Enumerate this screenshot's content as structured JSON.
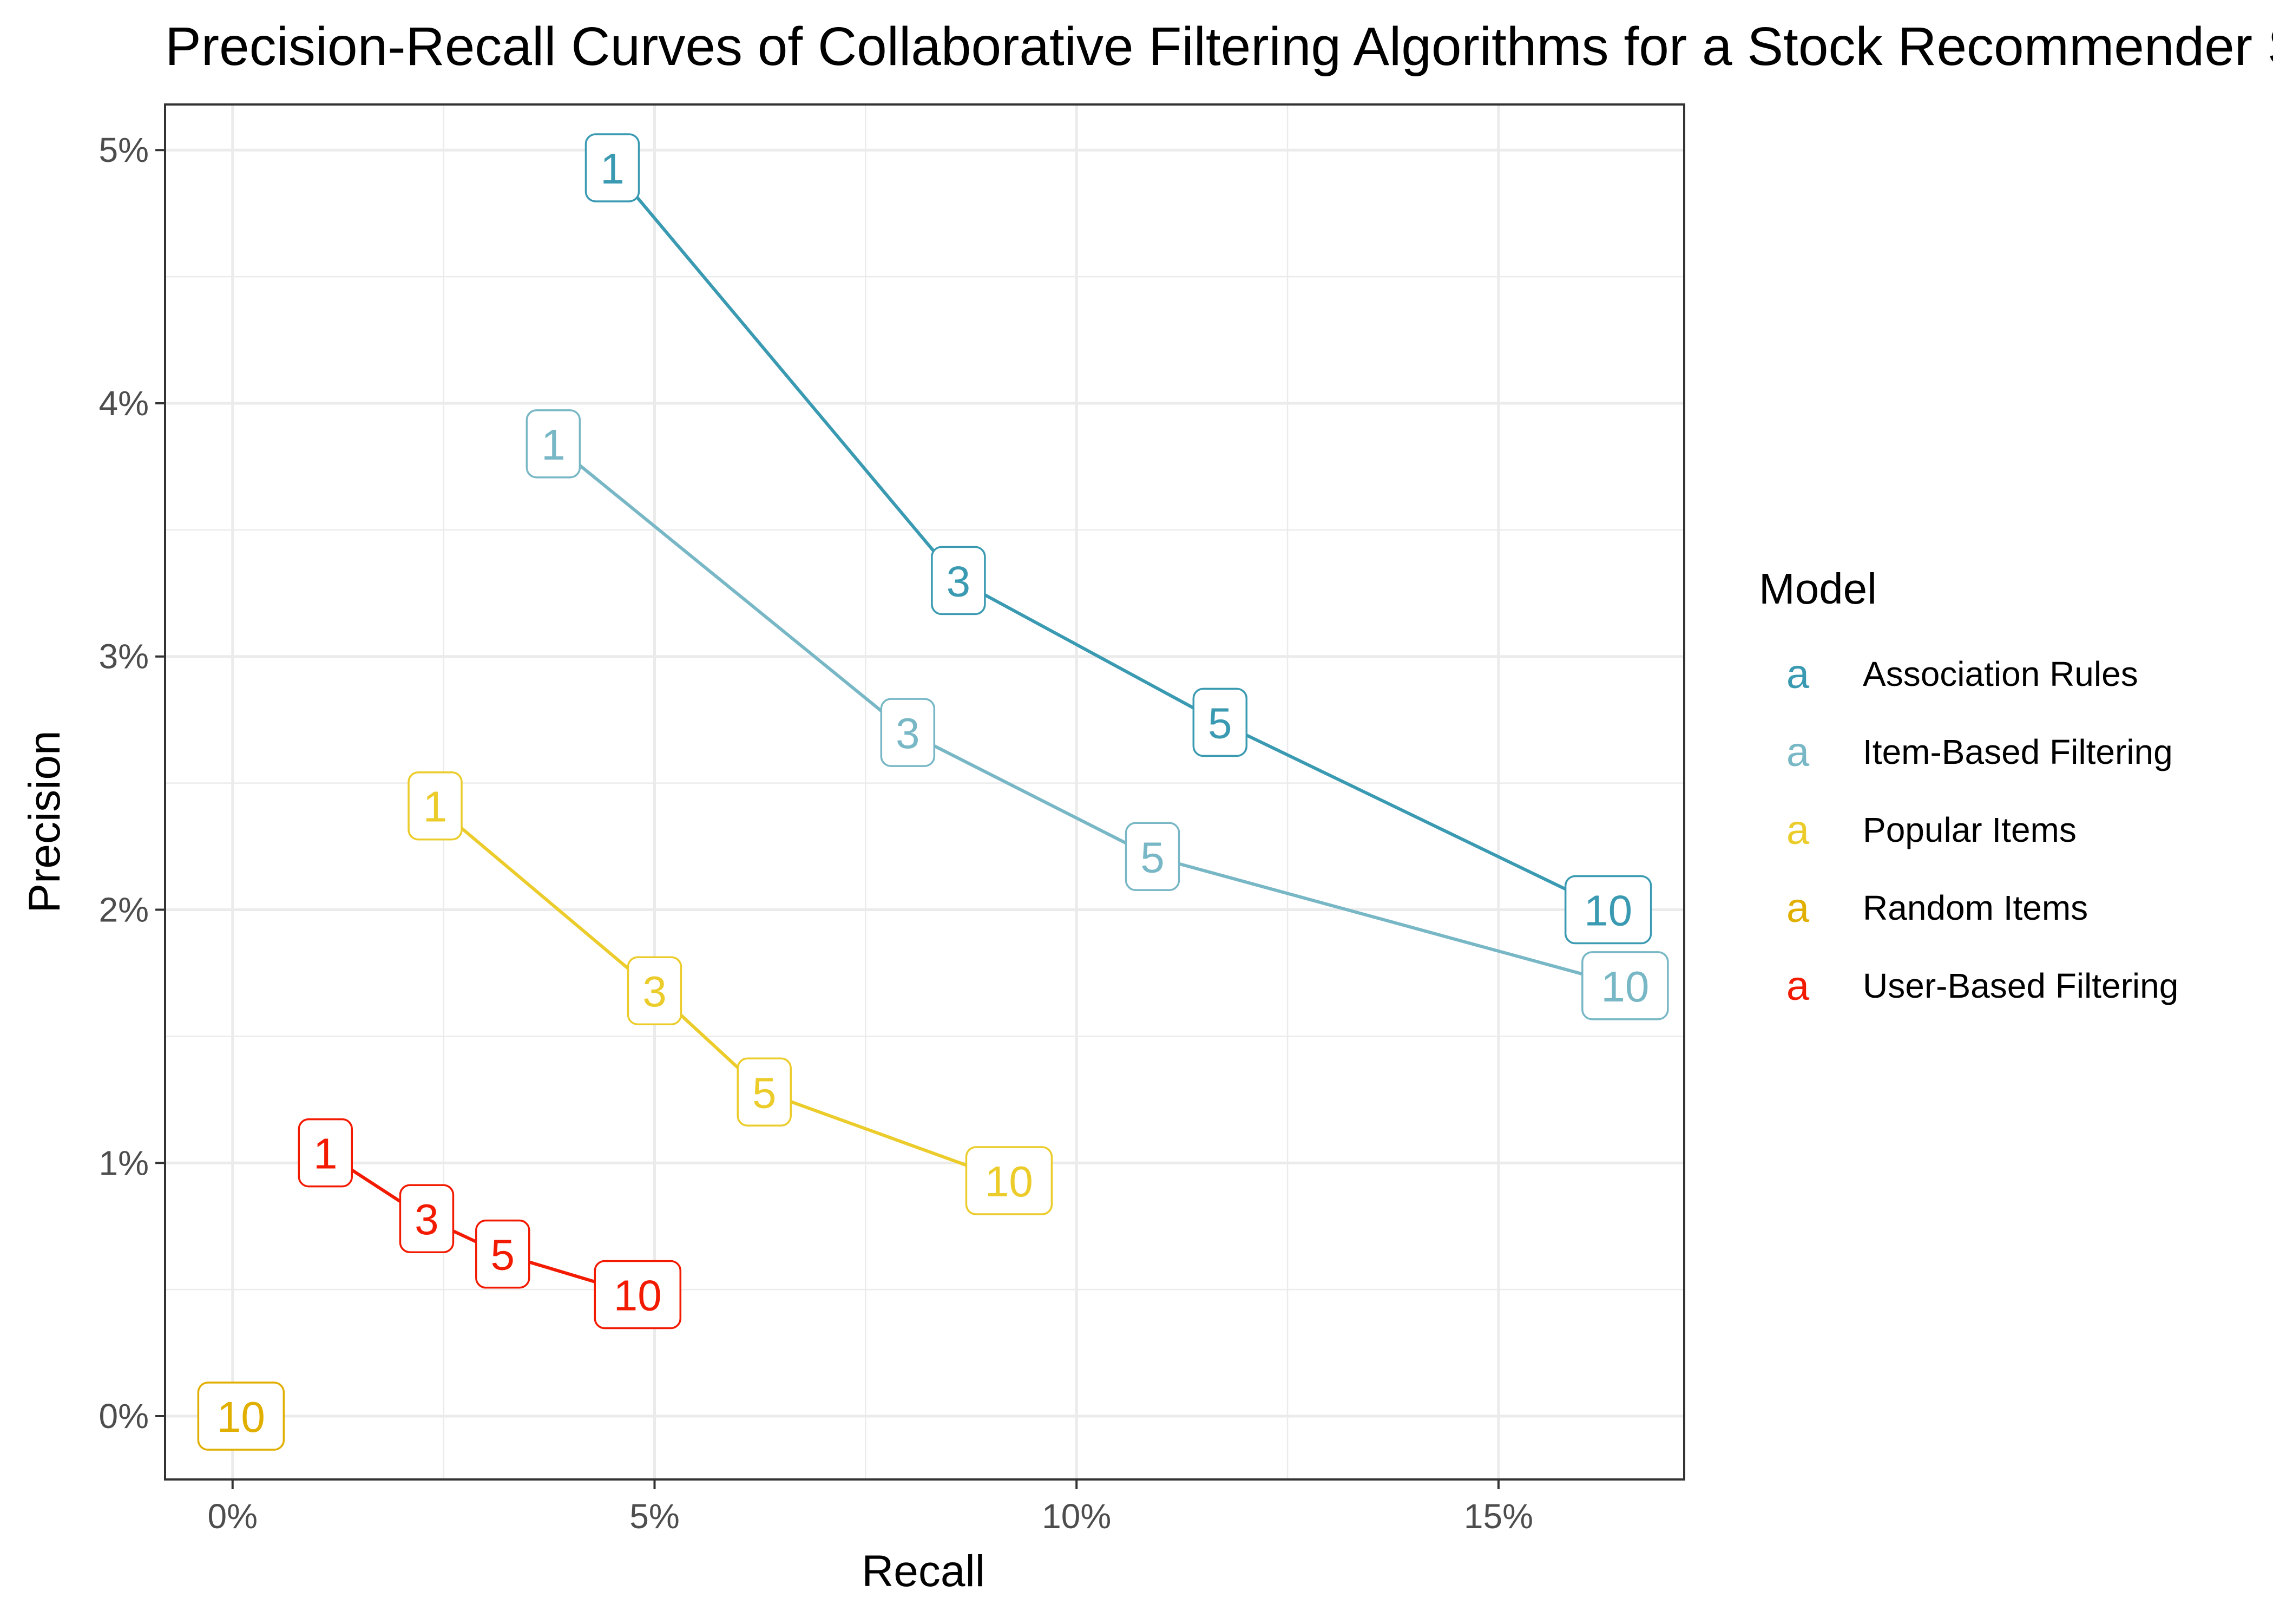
{
  "chart_data": {
    "type": "line",
    "title": "Precision-Recall Curves of Collaborative Filtering Algorithms for a Stock Recommender System",
    "xlabel": "Recall",
    "ylabel": "Precision",
    "xlim": [
      -0.008,
      0.172
    ],
    "ylim": [
      -0.0025,
      0.0518
    ],
    "x_ticks": [
      0,
      0.05,
      0.1,
      0.15
    ],
    "x_tick_labels": [
      "0%",
      "5%",
      "10%",
      "15%"
    ],
    "y_ticks": [
      0,
      0.01,
      0.02,
      0.03,
      0.04,
      0.05
    ],
    "y_tick_labels": [
      "0%",
      "1%",
      "2%",
      "3%",
      "4%",
      "5%"
    ],
    "grid": true,
    "legend": {
      "title": "Model",
      "position": "right",
      "key_glyph": "a"
    },
    "series": [
      {
        "name": "Association Rules",
        "color": "#3A9AB2",
        "points": [
          {
            "label": "1",
            "x": 0.045,
            "y": 0.0493
          },
          {
            "label": "3",
            "x": 0.086,
            "y": 0.033
          },
          {
            "label": "5",
            "x": 0.117,
            "y": 0.0274
          },
          {
            "label": "10",
            "x": 0.163,
            "y": 0.02
          }
        ]
      },
      {
        "name": "Item-Based Filtering",
        "color": "#78B7C5",
        "points": [
          {
            "label": "1",
            "x": 0.038,
            "y": 0.0384
          },
          {
            "label": "3",
            "x": 0.08,
            "y": 0.027
          },
          {
            "label": "5",
            "x": 0.109,
            "y": 0.0221
          },
          {
            "label": "10",
            "x": 0.165,
            "y": 0.017
          }
        ]
      },
      {
        "name": "Popular Items",
        "color": "#EBCC2A",
        "points": [
          {
            "label": "1",
            "x": 0.024,
            "y": 0.0241
          },
          {
            "label": "3",
            "x": 0.05,
            "y": 0.0168
          },
          {
            "label": "5",
            "x": 0.063,
            "y": 0.0128
          },
          {
            "label": "10",
            "x": 0.092,
            "y": 0.0093
          }
        ]
      },
      {
        "name": "Random Items",
        "color": "#E1AF00",
        "points": [
          {
            "label": "10",
            "x": 0.001,
            "y": 0.0
          }
        ]
      },
      {
        "name": "User-Based Filtering",
        "color": "#F21A00",
        "points": [
          {
            "label": "1",
            "x": 0.011,
            "y": 0.0104
          },
          {
            "label": "3",
            "x": 0.023,
            "y": 0.0078
          },
          {
            "label": "5",
            "x": 0.032,
            "y": 0.0064
          },
          {
            "label": "10",
            "x": 0.048,
            "y": 0.0048
          }
        ]
      }
    ]
  }
}
